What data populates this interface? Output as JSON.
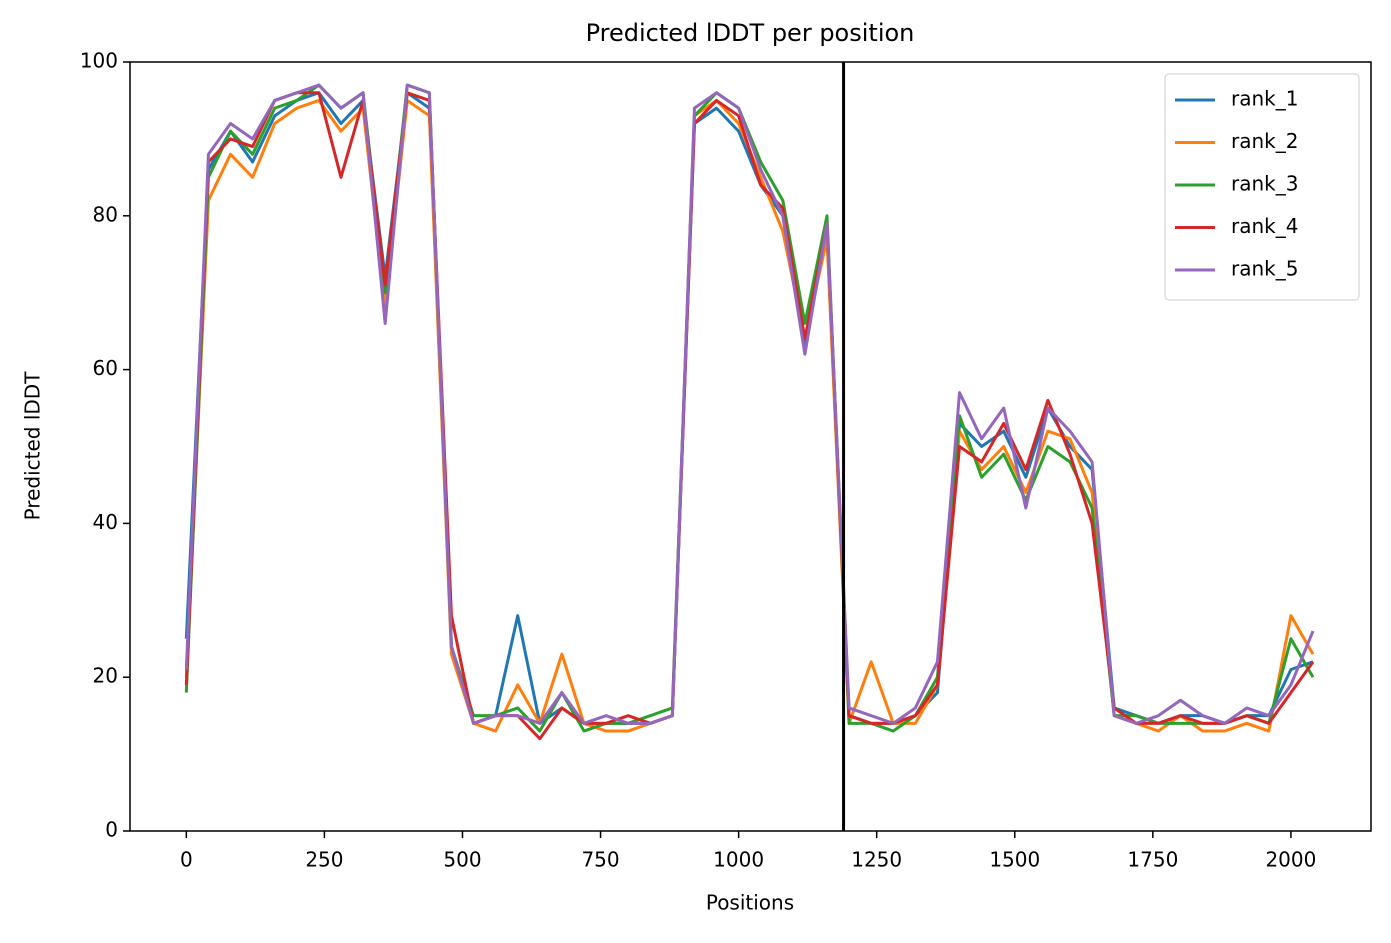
{
  "chart_data": {
    "type": "line",
    "title": "Predicted lDDT per position",
    "xlabel": "Positions",
    "ylabel": "Predicted lDDT",
    "x": [
      0,
      40,
      80,
      120,
      160,
      200,
      240,
      280,
      320,
      360,
      400,
      440,
      480,
      520,
      560,
      600,
      640,
      680,
      720,
      760,
      800,
      840,
      880,
      920,
      960,
      1000,
      1040,
      1080,
      1120,
      1160,
      1200,
      1240,
      1280,
      1320,
      1360,
      1400,
      1440,
      1480,
      1520,
      1560,
      1600,
      1640,
      1680,
      1720,
      1760,
      1800,
      1840,
      1880,
      1920,
      1960,
      2000,
      2040
    ],
    "series": [
      {
        "name": "rank_1",
        "color": "#1f77b4",
        "values": [
          25,
          86,
          91,
          87,
          93,
          95,
          96,
          92,
          95,
          72,
          96,
          94,
          24,
          14,
          15,
          28,
          14,
          16,
          14,
          14,
          14,
          14,
          15,
          92,
          94,
          91,
          84,
          80,
          63,
          78,
          15,
          14,
          14,
          15,
          18,
          53,
          50,
          52,
          46,
          55,
          50,
          47,
          16,
          15,
          14,
          15,
          15,
          14,
          15,
          15,
          21,
          22
        ]
      },
      {
        "name": "rank_2",
        "color": "#ff7f0e",
        "values": [
          20,
          82,
          88,
          85,
          92,
          94,
          95,
          91,
          94,
          68,
          95,
          93,
          23,
          14,
          13,
          19,
          14,
          23,
          14,
          13,
          13,
          14,
          15,
          93,
          95,
          92,
          85,
          78,
          64,
          77,
          14,
          22,
          14,
          14,
          19,
          52,
          47,
          50,
          44,
          52,
          51,
          44,
          15,
          14,
          13,
          15,
          13,
          13,
          14,
          13,
          28,
          23
        ]
      },
      {
        "name": "rank_3",
        "color": "#2ca02c",
        "values": [
          18,
          85,
          91,
          88,
          94,
          95,
          97,
          94,
          96,
          70,
          97,
          96,
          24,
          15,
          15,
          16,
          13,
          18,
          13,
          14,
          14,
          15,
          16,
          93,
          96,
          94,
          87,
          82,
          66,
          80,
          14,
          14,
          13,
          15,
          20,
          54,
          46,
          49,
          43,
          50,
          48,
          42,
          15,
          15,
          14,
          14,
          14,
          14,
          15,
          14,
          25,
          20
        ]
      },
      {
        "name": "rank_4",
        "color": "#d62728",
        "values": [
          19,
          87,
          90,
          89,
          95,
          96,
          96,
          85,
          95,
          71,
          96,
          95,
          28,
          14,
          15,
          15,
          12,
          16,
          14,
          14,
          15,
          14,
          15,
          92,
          95,
          93,
          84,
          81,
          64,
          79,
          15,
          14,
          14,
          15,
          19,
          50,
          48,
          53,
          47,
          56,
          49,
          40,
          16,
          14,
          14,
          15,
          14,
          14,
          15,
          14,
          18,
          22
        ]
      },
      {
        "name": "rank_5",
        "color": "#9467bd",
        "values": [
          21,
          88,
          92,
          90,
          95,
          96,
          97,
          94,
          96,
          66,
          97,
          96,
          24,
          14,
          15,
          15,
          14,
          18,
          14,
          15,
          14,
          14,
          15,
          94,
          96,
          94,
          86,
          80,
          62,
          79,
          16,
          15,
          14,
          16,
          22,
          57,
          51,
          55,
          42,
          55,
          52,
          48,
          15,
          14,
          15,
          17,
          15,
          14,
          16,
          15,
          19,
          26
        ]
      }
    ],
    "vline": 1190,
    "xlim": [
      -102,
      2145
    ],
    "ylim": [
      0,
      100
    ],
    "xticks": [
      0,
      250,
      500,
      750,
      1000,
      1250,
      1500,
      1750,
      2000
    ],
    "yticks": [
      0,
      20,
      40,
      60,
      80,
      100
    ],
    "legend": "upper right"
  }
}
